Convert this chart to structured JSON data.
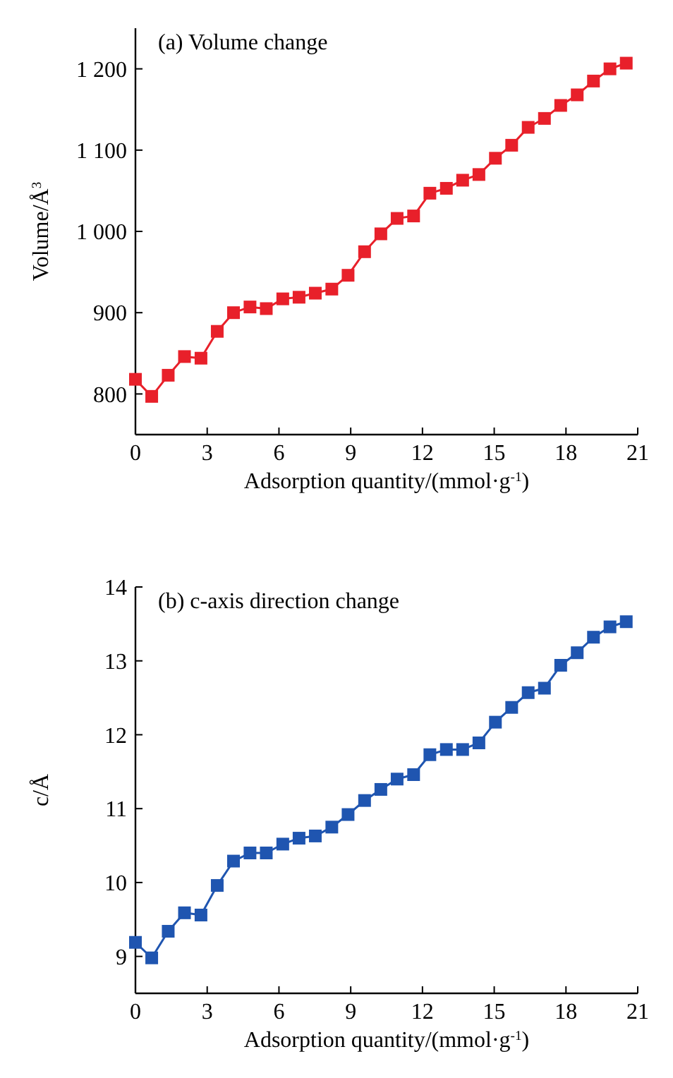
{
  "chart_data": [
    {
      "type": "line",
      "title": "(a) Volume change",
      "xlabel": "Adsorption quantity/(mmol·g$^{-1}$)",
      "ylabel": "Volume/Å$^{3}$",
      "marker": "square",
      "line_style": "solid",
      "x": [
        0,
        0.68,
        1.37,
        2.05,
        2.74,
        3.42,
        4.1,
        4.79,
        5.47,
        6.16,
        6.84,
        7.52,
        8.21,
        8.89,
        9.58,
        10.26,
        10.94,
        11.63,
        12.31,
        13,
        13.68,
        14.36,
        15.05,
        15.73,
        16.42,
        17.1,
        17.78,
        18.47,
        19.15,
        19.84,
        20.52
      ],
      "series": [
        {
          "color": "#e8202a",
          "values": [
            818,
            797,
            823,
            846,
            844,
            877,
            900,
            907,
            905,
            917,
            919,
            924,
            929,
            946,
            975,
            997,
            1016,
            1019,
            1047,
            1053,
            1063,
            1070,
            1090,
            1106,
            1128,
            1139,
            1155,
            1168,
            1185,
            1200,
            1207
          ]
        }
      ],
      "xlim": [
        0,
        21
      ],
      "xticks": [
        0,
        3,
        6,
        9,
        12,
        15,
        18,
        21
      ],
      "ylim": [
        750,
        1250
      ],
      "yticks": [
        800,
        900,
        {
          "value": 1000,
          "label": "1 000"
        },
        {
          "value": 1100,
          "label": "1 100"
        },
        {
          "value": 1200,
          "label": "1 200"
        }
      ]
    },
    {
      "type": "line",
      "title": "(b) c-axis direction change",
      "xlabel": "Adsorption quantity/(mmol·g$^{-1}$)",
      "ylabel": "c/Å",
      "marker": "square",
      "line_style": "solid",
      "x": [
        0,
        0.68,
        1.37,
        2.05,
        2.74,
        3.42,
        4.1,
        4.79,
        5.47,
        6.16,
        6.84,
        7.52,
        8.21,
        8.89,
        9.58,
        10.26,
        10.94,
        11.63,
        12.31,
        13,
        13.68,
        14.36,
        15.05,
        15.73,
        16.42,
        17.1,
        17.78,
        18.47,
        19.15,
        19.84,
        20.52
      ],
      "series": [
        {
          "color": "#1f55b0",
          "values": [
            9.19,
            8.98,
            9.34,
            9.59,
            9.56,
            9.96,
            10.29,
            10.4,
            10.4,
            10.52,
            10.6,
            10.63,
            10.75,
            10.92,
            11.11,
            11.26,
            11.4,
            11.46,
            11.73,
            11.8,
            11.8,
            11.89,
            12.17,
            12.37,
            12.57,
            12.63,
            12.94,
            13.11,
            13.32,
            13.46,
            13.53
          ]
        }
      ],
      "xlim": [
        0,
        21
      ],
      "xticks": [
        0,
        3,
        6,
        9,
        12,
        15,
        18,
        21
      ],
      "ylim": [
        8.5,
        14
      ],
      "yticks": [
        9,
        10,
        11,
        12,
        13,
        14
      ]
    }
  ]
}
